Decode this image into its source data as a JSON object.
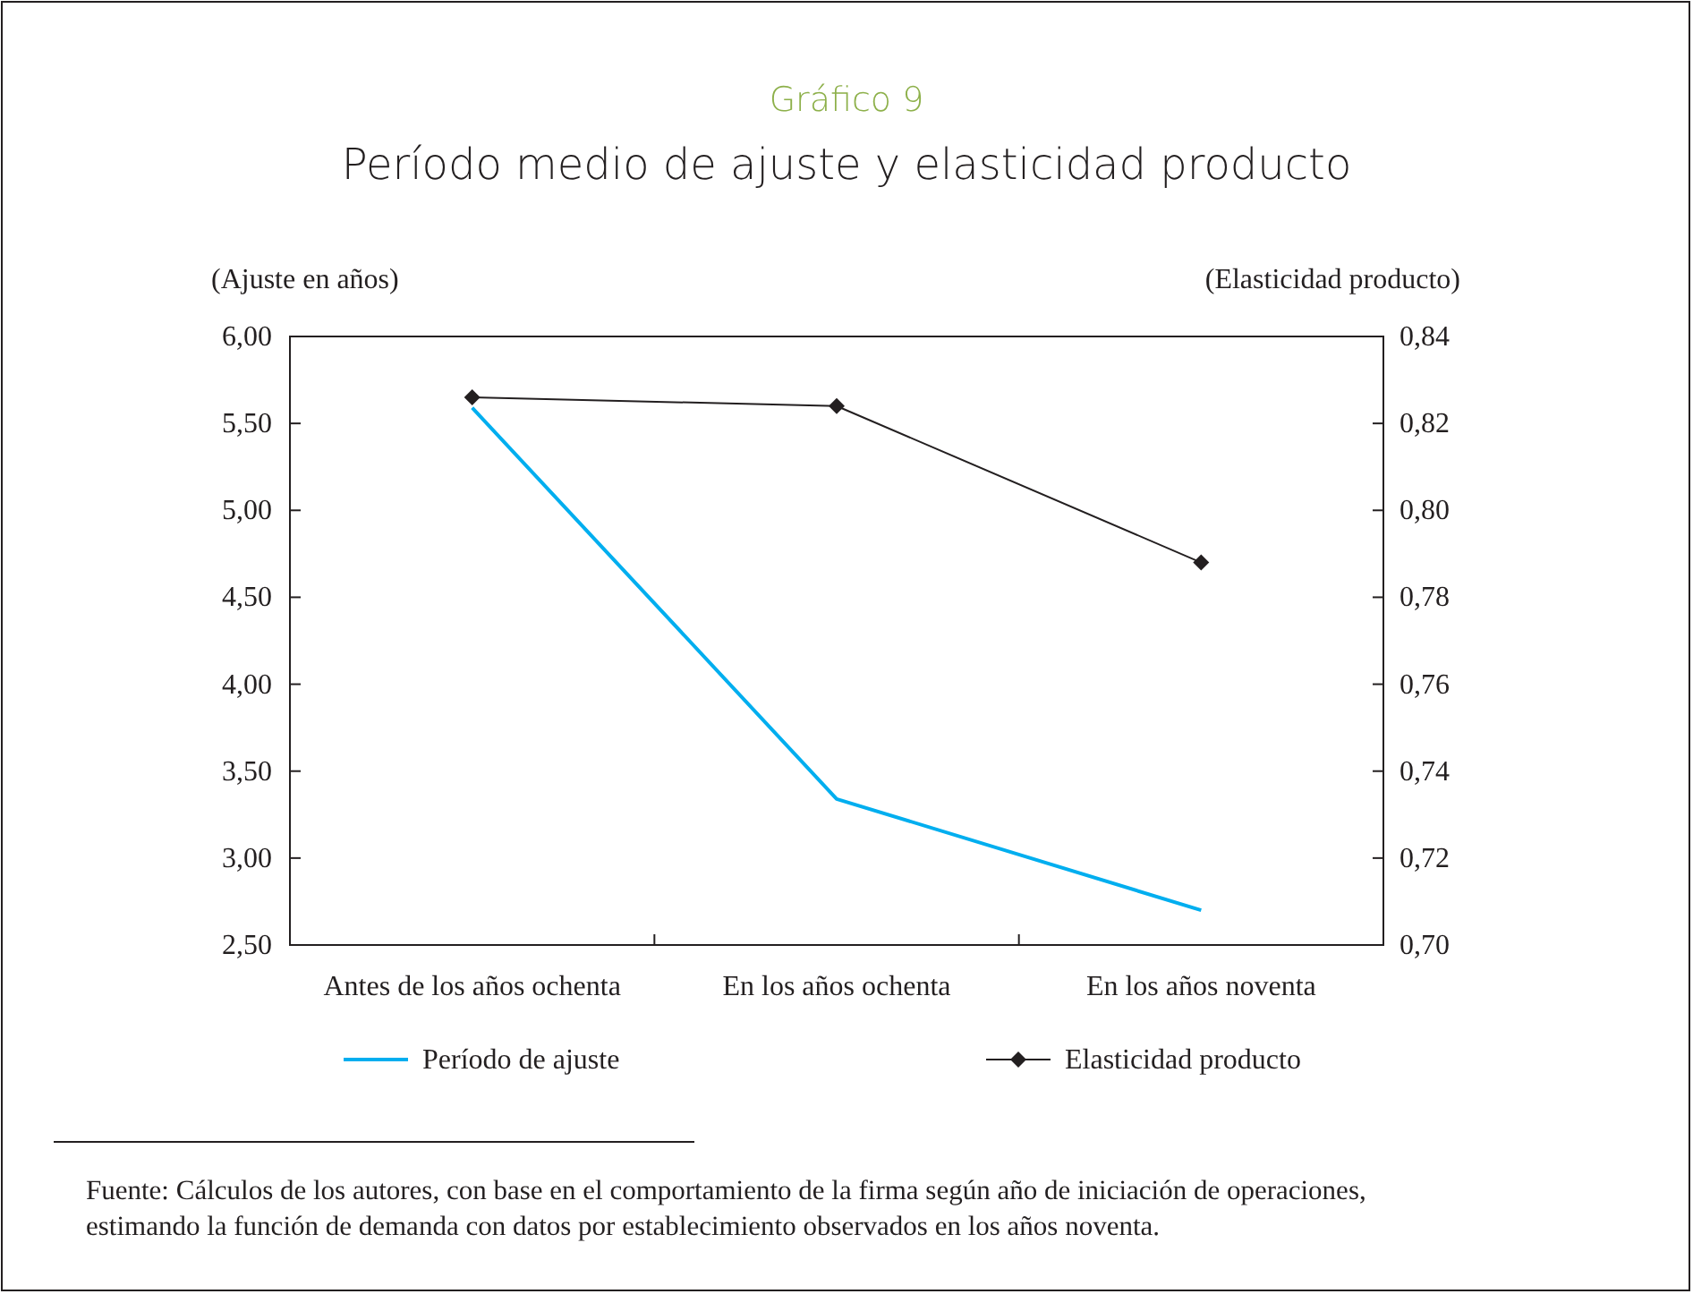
{
  "chart_data": {
    "type": "line",
    "title": "Gráfico 9",
    "subtitle": "Período medio de ajuste y elasticidad producto",
    "ylabel": "(Ajuste en años)",
    "y2label": "(Elasticidad producto)",
    "categories": [
      "Antes de los años ochenta",
      "En los años ochenta",
      "En los años noventa"
    ],
    "series": [
      {
        "name": "Período de ajuste",
        "color": "#00aeef",
        "values": [
          5.59,
          3.34,
          2.7
        ],
        "marker": "none"
      },
      {
        "name": "Elasticidad producto",
        "color": "#231f20",
        "values": [
          0.826,
          0.824,
          0.788
        ],
        "axis": "y2",
        "marker": "diamond"
      }
    ],
    "ylim": [
      2.5,
      6
    ],
    "yticks": [
      {
        "value": 2.5,
        "label": "2,50"
      },
      {
        "value": 3,
        "label": "3,00"
      },
      {
        "value": 3.5,
        "label": "3,50"
      },
      {
        "value": 4,
        "label": "4,00"
      },
      {
        "value": 4.5,
        "label": "4,50"
      },
      {
        "value": 5,
        "label": "5,00"
      },
      {
        "value": 5.5,
        "label": "5,50"
      },
      {
        "value": 6,
        "label": "6,00"
      }
    ],
    "y2lim": [
      0.7,
      0.84
    ],
    "y2ticks": [
      {
        "value": 0.7,
        "label": "0,70"
      },
      {
        "value": 0.72,
        "label": "0,72"
      },
      {
        "value": 0.74,
        "label": "0,74"
      },
      {
        "value": 0.76,
        "label": "0,76"
      },
      {
        "value": 0.78,
        "label": "0,78"
      },
      {
        "value": 0.8,
        "label": "0,80"
      },
      {
        "value": 0.82,
        "label": "0,82"
      },
      {
        "value": 0.84,
        "label": "0,84"
      }
    ],
    "grid": false,
    "legend": "bottom",
    "annotations": [
      "Fuente: Cálculos de los autores, con base en el comportamiento de la firma según año de iniciación de operaciones, estimando la función de demanda con datos por establecimiento observados en los años noventa."
    ]
  }
}
